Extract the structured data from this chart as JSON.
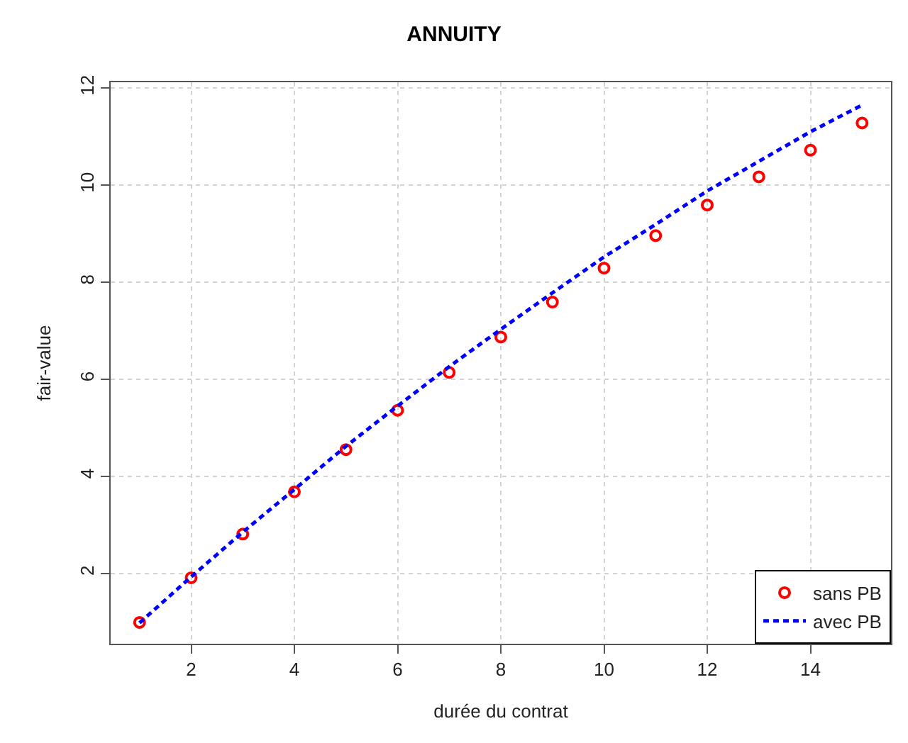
{
  "chart_data": {
    "type": "scatter",
    "title": "ANNUITY",
    "xlabel": "durée du contrat",
    "ylabel": "fair-value",
    "x": [
      1,
      2,
      3,
      4,
      5,
      6,
      7,
      8,
      9,
      10,
      11,
      12,
      13,
      14,
      15
    ],
    "series": [
      {
        "name": "sans PB",
        "color": "#ff0000",
        "marker": "circle",
        "values": [
          0.99,
          1.91,
          2.81,
          3.68,
          4.55,
          5.36,
          6.14,
          6.87,
          7.59,
          8.29,
          8.96,
          9.59,
          10.17,
          10.72,
          11.28
        ]
      },
      {
        "name": "avec PB",
        "type": "line",
        "color": "#0000ff",
        "marker": "none",
        "line_style": "dashed",
        "values": [
          0.98,
          1.93,
          2.85,
          3.73,
          4.62,
          5.45,
          6.26,
          7.03,
          7.78,
          8.52,
          9.19,
          9.88,
          10.49,
          11.1,
          11.65
        ]
      }
    ],
    "xlim": [
      0.44,
      15.56
    ],
    "xticks": [
      2,
      4,
      6,
      8,
      10,
      12,
      14
    ],
    "ylim": [
      0.55,
      12.12
    ],
    "yticks": [
      2,
      4,
      6,
      8,
      10,
      12
    ],
    "grid": true,
    "legend": "bottom right"
  }
}
